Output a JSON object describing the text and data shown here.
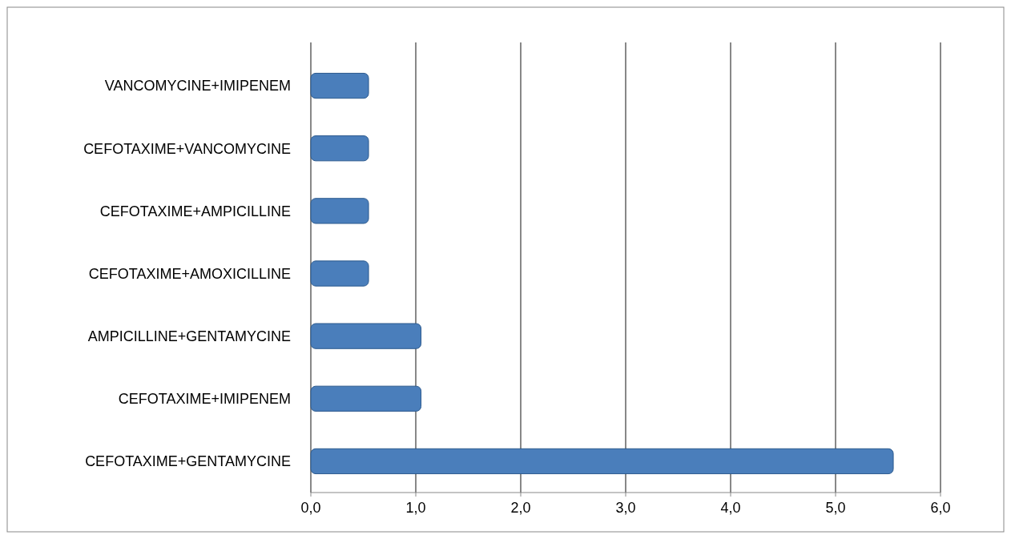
{
  "chart_data": {
    "type": "bar",
    "orientation": "horizontal",
    "categories": [
      "VANCOMYCINE+IMIPENEM",
      "CEFOTAXIME+VANCOMYCINE",
      "CEFOTAXIME+AMPICILLINE",
      "CEFOTAXIME+AMOXICILLINE",
      "AMPICILLINE+GENTAMYCINE",
      "CEFOTAXIME+IMIPENEM",
      "CEFOTAXIME+GENTAMYCINE"
    ],
    "values": [
      0.55,
      0.55,
      0.55,
      0.55,
      1.05,
      1.05,
      5.55
    ],
    "color": "#4a7ebb",
    "xlim": [
      0,
      6
    ],
    "xticks": [
      {
        "value": 0,
        "label": "0,0"
      },
      {
        "value": 1,
        "label": "1,0"
      },
      {
        "value": 2,
        "label": "2,0"
      },
      {
        "value": 3,
        "label": "3,0"
      },
      {
        "value": 4,
        "label": "4,0"
      },
      {
        "value": 5,
        "label": "5,0"
      },
      {
        "value": 6,
        "label": "6,0"
      }
    ],
    "grid": "x"
  }
}
